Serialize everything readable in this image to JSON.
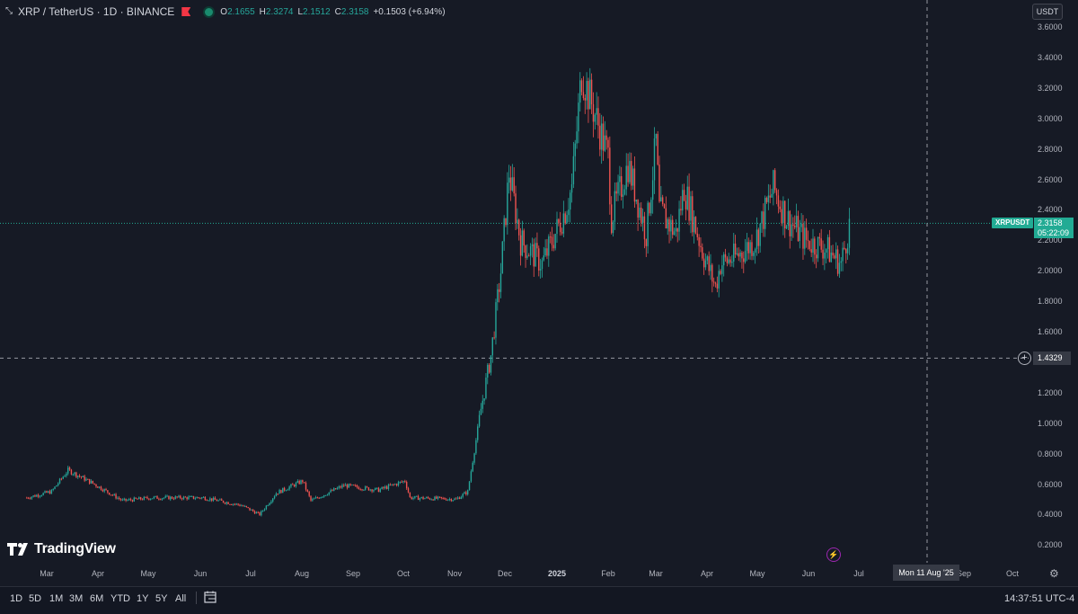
{
  "header": {
    "symbol": "XRP / TetherUS · 1D · BINANCE",
    "open_label": "O",
    "open": "2.1655",
    "high_label": "H",
    "high": "2.3274",
    "low_label": "L",
    "low": "2.1512",
    "close_label": "C",
    "close": "2.3158",
    "change": "+0.1503 (+6.94%)"
  },
  "price_axis": {
    "currency": "USDT",
    "ticks": [
      "3.6000",
      "3.4000",
      "3.2000",
      "3.0000",
      "2.8000",
      "2.6000",
      "2.4000",
      "2.2000",
      "2.0000",
      "1.8000",
      "1.6000",
      "1.4000",
      "1.2000",
      "1.0000",
      "0.8000",
      "0.6000",
      "0.4000",
      "0.2000"
    ],
    "last_symbol": "XRPUSDT",
    "last_price": "2.3158",
    "countdown": "05:22:09",
    "crosshair_price": "1.4329"
  },
  "time_axis": {
    "months": [
      {
        "label": "Mar",
        "bold": false
      },
      {
        "label": "Apr",
        "bold": false
      },
      {
        "label": "May",
        "bold": false
      },
      {
        "label": "Jun",
        "bold": false
      },
      {
        "label": "Jul",
        "bold": false
      },
      {
        "label": "Aug",
        "bold": false
      },
      {
        "label": "Sep",
        "bold": false
      },
      {
        "label": "Oct",
        "bold": false
      },
      {
        "label": "Nov",
        "bold": false
      },
      {
        "label": "Dec",
        "bold": false
      },
      {
        "label": "2025",
        "bold": true
      },
      {
        "label": "Feb",
        "bold": false
      },
      {
        "label": "Mar",
        "bold": false
      },
      {
        "label": "Apr",
        "bold": false
      },
      {
        "label": "May",
        "bold": false
      },
      {
        "label": "Jun",
        "bold": false
      },
      {
        "label": "Jul",
        "bold": false
      },
      {
        "label": "Sep",
        "bold": false
      },
      {
        "label": "Oct",
        "bold": false
      }
    ],
    "crosshair_date": "Mon 11 Aug '25"
  },
  "branding": {
    "logo_text": "TradingView"
  },
  "bottom_bar": {
    "timeframes": [
      "1D",
      "5D",
      "1M",
      "3M",
      "6M",
      "YTD",
      "1Y",
      "5Y",
      "All"
    ],
    "clock": "14:37:51 UTC-4"
  },
  "colors": {
    "up": "#26a69a",
    "down": "#ef5350",
    "background": "#161a25",
    "accent": "#22ab94"
  },
  "chart_data": {
    "type": "candlestick",
    "title": "XRP / TetherUS · 1D · BINANCE",
    "xlabel": "",
    "ylabel": "",
    "ylim": [
      0.1,
      3.7
    ],
    "grid": false,
    "series": [
      {
        "anchors": [
          [
            "2024-02-15",
            0.52
          ],
          [
            "2024-03-01",
            0.56
          ],
          [
            "2024-03-11",
            0.7
          ],
          [
            "2024-03-25",
            0.62
          ],
          [
            "2024-04-13",
            0.5
          ],
          [
            "2024-05-01",
            0.52
          ],
          [
            "2024-06-01",
            0.52
          ],
          [
            "2024-06-24",
            0.47
          ],
          [
            "2024-07-05",
            0.41
          ],
          [
            "2024-07-15",
            0.55
          ],
          [
            "2024-07-31",
            0.63
          ],
          [
            "2024-08-05",
            0.5
          ],
          [
            "2024-08-25",
            0.6
          ],
          [
            "2024-09-15",
            0.57
          ],
          [
            "2024-10-01",
            0.63
          ],
          [
            "2024-10-04",
            0.52
          ],
          [
            "2024-11-01",
            0.51
          ],
          [
            "2024-11-08",
            0.56
          ],
          [
            "2024-11-16",
            1.1
          ],
          [
            "2024-11-22",
            1.45
          ],
          [
            "2024-11-28",
            2.0
          ],
          [
            "2024-12-03",
            2.65
          ],
          [
            "2024-12-10",
            2.2
          ],
          [
            "2024-12-23",
            2.05
          ],
          [
            "2025-01-06",
            2.4
          ],
          [
            "2025-01-10",
            2.55
          ],
          [
            "2025-01-16",
            3.3
          ],
          [
            "2025-01-22",
            3.1
          ],
          [
            "2025-02-01",
            2.75
          ],
          [
            "2025-02-03",
            2.35
          ],
          [
            "2025-02-13",
            2.7
          ],
          [
            "2025-02-24",
            2.25
          ],
          [
            "2025-03-02",
            2.85
          ],
          [
            "2025-03-04",
            2.4
          ],
          [
            "2025-03-14",
            2.25
          ],
          [
            "2025-03-19",
            2.55
          ],
          [
            "2025-03-31",
            2.1
          ],
          [
            "2025-04-07",
            1.9
          ],
          [
            "2025-04-10",
            2.05
          ],
          [
            "2025-04-20",
            2.1
          ],
          [
            "2025-05-01",
            2.2
          ],
          [
            "2025-05-12",
            2.55
          ],
          [
            "2025-05-20",
            2.35
          ],
          [
            "2025-06-01",
            2.2
          ],
          [
            "2025-06-13",
            2.15
          ],
          [
            "2025-06-22",
            2.05
          ],
          [
            "2025-06-27",
            2.3
          ]
        ]
      }
    ]
  }
}
